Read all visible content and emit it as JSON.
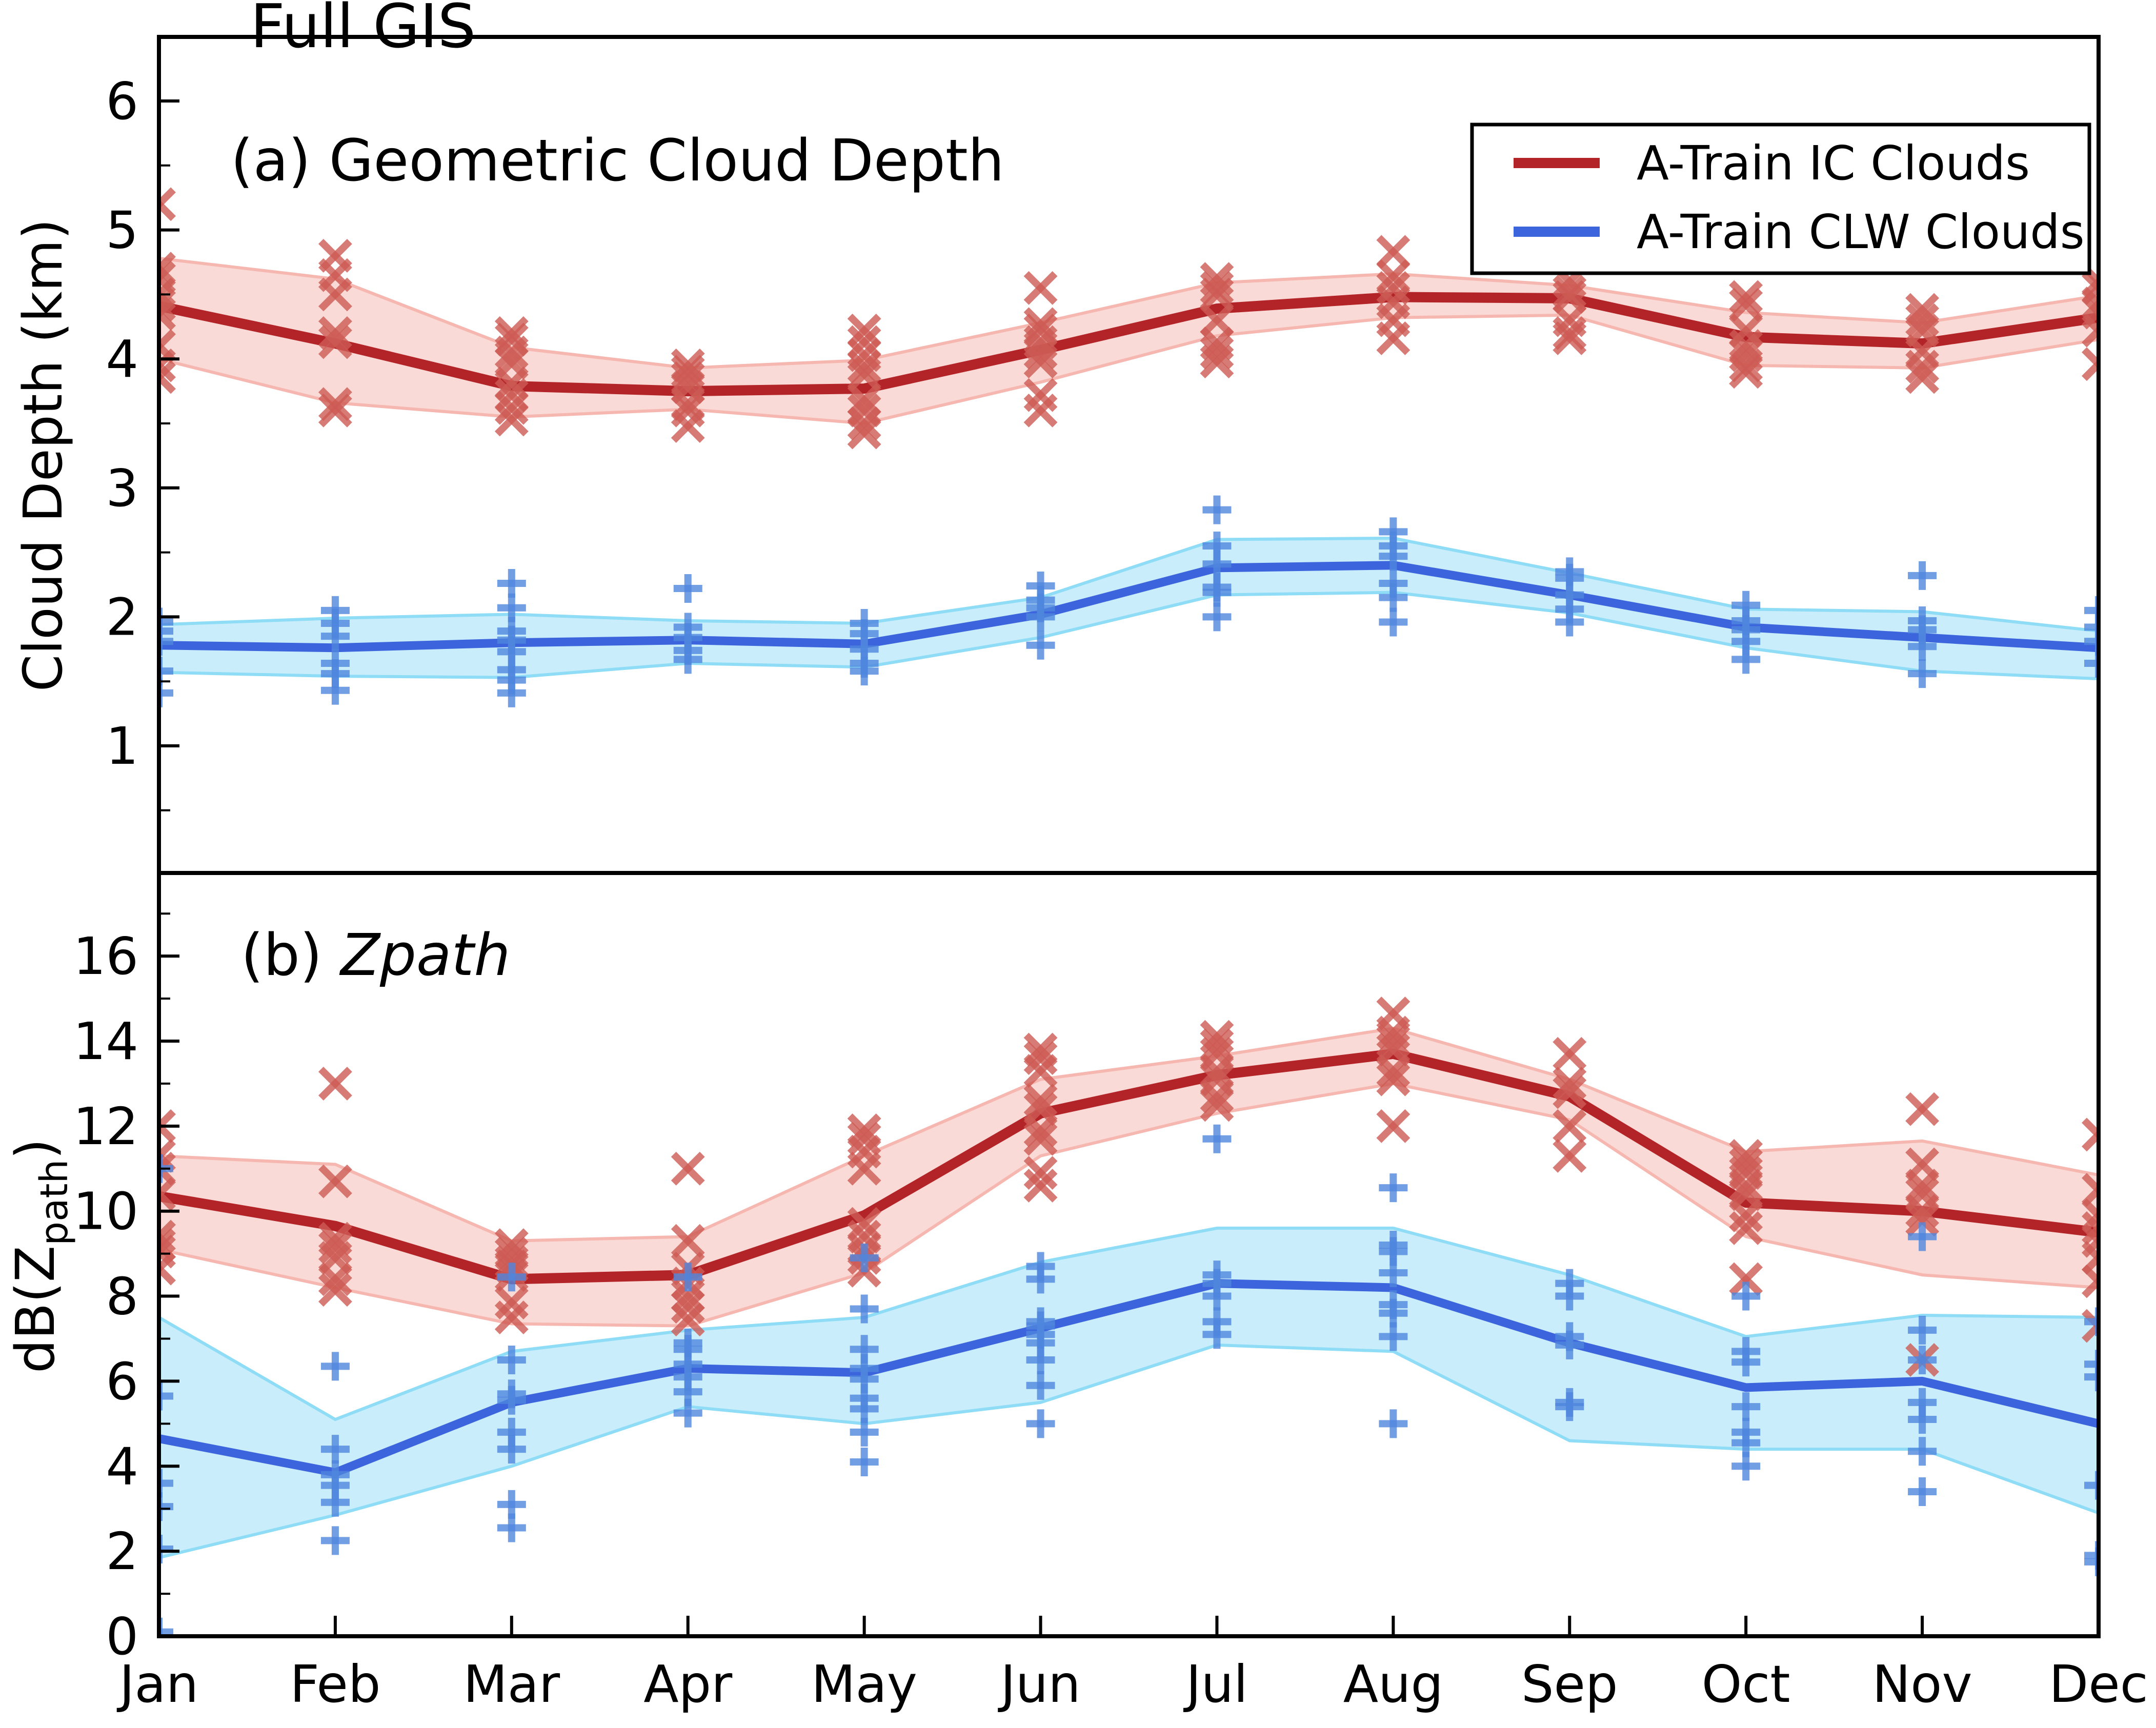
{
  "title": "Full GIS",
  "months": [
    "Jan",
    "Feb",
    "Mar",
    "Apr",
    "May",
    "Jun",
    "Jul",
    "Aug",
    "Sep",
    "Oct",
    "Nov",
    "Dec"
  ],
  "legend": {
    "entries": [
      {
        "label": "A-Train IC Clouds",
        "color": "#b32428"
      },
      {
        "label": "A-Train CLW Clouds",
        "color": "#3c64dc"
      }
    ]
  },
  "chart_data": [
    {
      "type": "line",
      "panel_label": "(a) Geometric Cloud Depth",
      "ylabel": "Cloud Depth (km)",
      "xlabel": "",
      "ylim": [
        0,
        6.5
      ],
      "yticks": [
        1,
        2,
        3,
        4,
        5,
        6
      ],
      "grid": false,
      "legend_position": "upper right",
      "series": [
        {
          "name": "A-Train IC Clouds",
          "marker": "x",
          "color": "#b32428",
          "scatter_color": "#cd5a54",
          "band_fill": "#fadad6",
          "band_edge": "#f5b7b0",
          "mean": [
            4.41,
            4.12,
            3.79,
            3.75,
            3.77,
            4.07,
            4.39,
            4.48,
            4.47,
            4.17,
            4.12,
            4.32
          ],
          "band_upper": [
            4.78,
            4.62,
            4.09,
            3.93,
            3.99,
            4.28,
            4.59,
            4.66,
            4.57,
            4.36,
            4.28,
            4.49
          ],
          "band_lower": [
            4.0,
            3.66,
            3.55,
            3.61,
            3.5,
            3.82,
            4.18,
            4.32,
            4.34,
            3.95,
            3.93,
            4.15
          ],
          "scatter": [
            [
              5.2,
              4.7,
              4.63,
              4.5,
              4.42,
              4.35,
              4.1,
              3.95,
              3.86
            ],
            [
              4.8,
              4.65,
              4.5,
              4.2,
              4.13,
              3.65,
              3.6
            ],
            [
              4.2,
              4.15,
              4.05,
              3.97,
              3.81,
              3.72,
              3.62,
              3.53
            ],
            [
              3.95,
              3.9,
              3.85,
              3.78,
              3.65,
              3.6,
              3.48
            ],
            [
              4.22,
              4.13,
              4.03,
              3.94,
              3.88,
              3.68,
              3.6,
              3.5,
              3.43
            ],
            [
              4.55,
              4.27,
              4.22,
              4.13,
              4.05,
              3.98,
              3.72,
              3.6
            ],
            [
              4.62,
              4.55,
              4.5,
              4.3,
              4.12,
              4.05,
              3.98
            ],
            [
              4.83,
              4.64,
              4.55,
              4.44,
              4.3,
              4.16
            ],
            [
              4.6,
              4.52,
              4.48,
              4.3,
              4.2,
              4.16
            ],
            [
              4.48,
              4.42,
              4.22,
              4.1,
              4.03,
              3.95,
              3.9
            ],
            [
              4.38,
              4.3,
              4.22,
              4.06,
              3.94,
              3.86
            ],
            [
              4.6,
              4.55,
              4.43,
              4.36,
              4.22,
              3.96
            ]
          ]
        },
        {
          "name": "A-Train CLW Clouds",
          "marker": "plus",
          "color": "#3c64dc",
          "scatter_color": "#4f86dd",
          "band_fill": "#c9edfb",
          "band_edge": "#8edcf6",
          "mean": [
            1.78,
            1.76,
            1.8,
            1.82,
            1.79,
            2.02,
            2.38,
            2.4,
            2.17,
            1.92,
            1.84,
            1.76
          ],
          "band_upper": [
            1.94,
            1.99,
            2.02,
            1.97,
            1.95,
            2.15,
            2.6,
            2.61,
            2.34,
            2.06,
            2.04,
            1.89
          ],
          "band_lower": [
            1.57,
            1.54,
            1.53,
            1.64,
            1.61,
            1.84,
            2.17,
            2.19,
            2.03,
            1.76,
            1.58,
            1.52
          ],
          "scatter": [
            [
              1.96,
              1.89,
              1.81,
              1.58,
              1.41
            ],
            [
              2.05,
              1.95,
              1.85,
              1.64,
              1.56,
              1.43
            ],
            [
              2.26,
              2.07,
              1.89,
              1.82,
              1.73,
              1.59,
              1.51,
              1.41
            ],
            [
              2.22,
              1.92,
              1.84,
              1.74,
              1.67
            ],
            [
              1.95,
              1.87,
              1.75,
              1.64,
              1.58
            ],
            [
              2.24,
              2.13,
              2.07,
              2.0,
              1.78
            ],
            [
              2.83,
              2.55,
              2.41,
              2.23,
              2.19,
              2.0
            ],
            [
              2.66,
              2.55,
              2.47,
              2.26,
              2.15,
              1.96
            ],
            [
              2.35,
              2.3,
              2.17,
              2.06,
              1.96
            ],
            [
              2.09,
              1.97,
              1.9,
              1.81,
              1.67
            ],
            [
              2.32,
              1.97,
              1.9,
              1.77,
              1.56
            ],
            [
              2.05,
              1.92,
              1.81,
              1.64
            ]
          ]
        }
      ]
    },
    {
      "type": "line",
      "panel_label": "(b) Zpath",
      "panel_label_prefix": "(b) ",
      "panel_label_italic": "Zpath",
      "ylabel": "dB(Zpath)",
      "ylabel_parts": {
        "pre": "dB(Z",
        "sub": "path",
        "post": ")"
      },
      "xlabel": "",
      "ylim": [
        0,
        18
      ],
      "yticks": [
        0,
        2,
        4,
        6,
        8,
        10,
        12,
        14,
        16
      ],
      "grid": false,
      "series": [
        {
          "name": "A-Train IC Clouds",
          "marker": "x",
          "color": "#b32428",
          "scatter_color": "#cd5a54",
          "band_fill": "#fadad6",
          "band_edge": "#f5b7b0",
          "mean": [
            10.35,
            9.65,
            8.4,
            8.5,
            9.9,
            12.3,
            13.2,
            13.7,
            12.7,
            10.2,
            10.0,
            9.5
          ],
          "band_upper": [
            11.3,
            11.1,
            9.3,
            9.4,
            11.3,
            13.1,
            13.65,
            14.3,
            13.1,
            11.4,
            11.65,
            10.85
          ],
          "band_lower": [
            9.1,
            8.2,
            7.35,
            7.3,
            8.55,
            11.3,
            12.3,
            13.0,
            12.15,
            9.4,
            8.5,
            8.2
          ],
          "scatter": [
            [
              12.0,
              11.3,
              11.0,
              10.4,
              9.4,
              9.2,
              9.05,
              8.65
            ],
            [
              13.0,
              10.7,
              9.35,
              9.15,
              8.9,
              8.4,
              8.15
            ],
            [
              9.2,
              9.0,
              8.8,
              8.7,
              8.5,
              7.85,
              7.5
            ],
            [
              11.0,
              9.3,
              8.65,
              8.3,
              8.0,
              7.75,
              7.45
            ],
            [
              11.9,
              11.7,
              11.4,
              11.0,
              9.7,
              9.4,
              9.1,
              8.9,
              8.6
            ],
            [
              13.8,
              13.6,
              13.3,
              12.6,
              12.4,
              11.9,
              11.7,
              10.9,
              10.6
            ],
            [
              14.1,
              13.9,
              13.7,
              13.3,
              13.1,
              12.7,
              12.5
            ],
            [
              14.65,
              14.2,
              14.0,
              13.8,
              13.3,
              13.1,
              12.0
            ],
            [
              13.7,
              13.0,
              12.8,
              12.0,
              11.3
            ],
            [
              11.3,
              11.1,
              10.9,
              10.6,
              10.4,
              9.9,
              9.6,
              8.4
            ],
            [
              12.4,
              11.1,
              10.6,
              10.4,
              10.0,
              9.8,
              6.5
            ],
            [
              11.8,
              10.5,
              9.9,
              9.6,
              9.3,
              8.9,
              8.35,
              7.3
            ]
          ]
        },
        {
          "name": "A-Train CLW Clouds",
          "marker": "plus",
          "color": "#3c64dc",
          "scatter_color": "#4f86dd",
          "band_fill": "#c9edfb",
          "band_edge": "#8edcf6",
          "mean": [
            4.65,
            3.85,
            5.5,
            6.3,
            6.2,
            7.25,
            8.3,
            8.2,
            6.9,
            5.85,
            6.0,
            5.0
          ],
          "band_upper": [
            7.5,
            5.1,
            6.7,
            7.2,
            7.5,
            8.8,
            9.6,
            9.6,
            8.5,
            7.05,
            7.55,
            7.5
          ],
          "band_lower": [
            1.85,
            2.85,
            4.0,
            5.4,
            5.0,
            5.5,
            6.85,
            6.7,
            4.6,
            4.4,
            4.4,
            2.9
          ],
          "scatter": [
            [
              11.0,
              5.65,
              3.6,
              3.05,
              2.05,
              0.1
            ],
            [
              6.35,
              4.4,
              3.8,
              3.55,
              3.15,
              2.25
            ],
            [
              8.45,
              6.5,
              5.7,
              5.55,
              4.8,
              4.4,
              3.1,
              2.55
            ],
            [
              8.45,
              6.9,
              6.75,
              6.4,
              6.1,
              5.75,
              5.25
            ],
            [
              8.9,
              7.7,
              6.75,
              6.3,
              6.05,
              5.6,
              5.35,
              4.8,
              4.1
            ],
            [
              8.7,
              8.4,
              7.4,
              7.3,
              7.1,
              6.9,
              6.5,
              5.9,
              5.0
            ],
            [
              11.7,
              8.5,
              8.3,
              8.0,
              7.4,
              7.1
            ],
            [
              10.55,
              9.2,
              9.05,
              8.55,
              7.8,
              7.6,
              7.05,
              5.0
            ],
            [
              8.3,
              8.0,
              7.05,
              6.85,
              5.5,
              5.4
            ],
            [
              8.0,
              6.7,
              6.45,
              5.4,
              4.8,
              4.55,
              4.0
            ],
            [
              9.4,
              7.2,
              6.5,
              5.5,
              5.1,
              4.35,
              3.4
            ],
            [
              7.4,
              6.4,
              6.1,
              3.55,
              1.9,
              1.75
            ]
          ]
        }
      ]
    }
  ]
}
